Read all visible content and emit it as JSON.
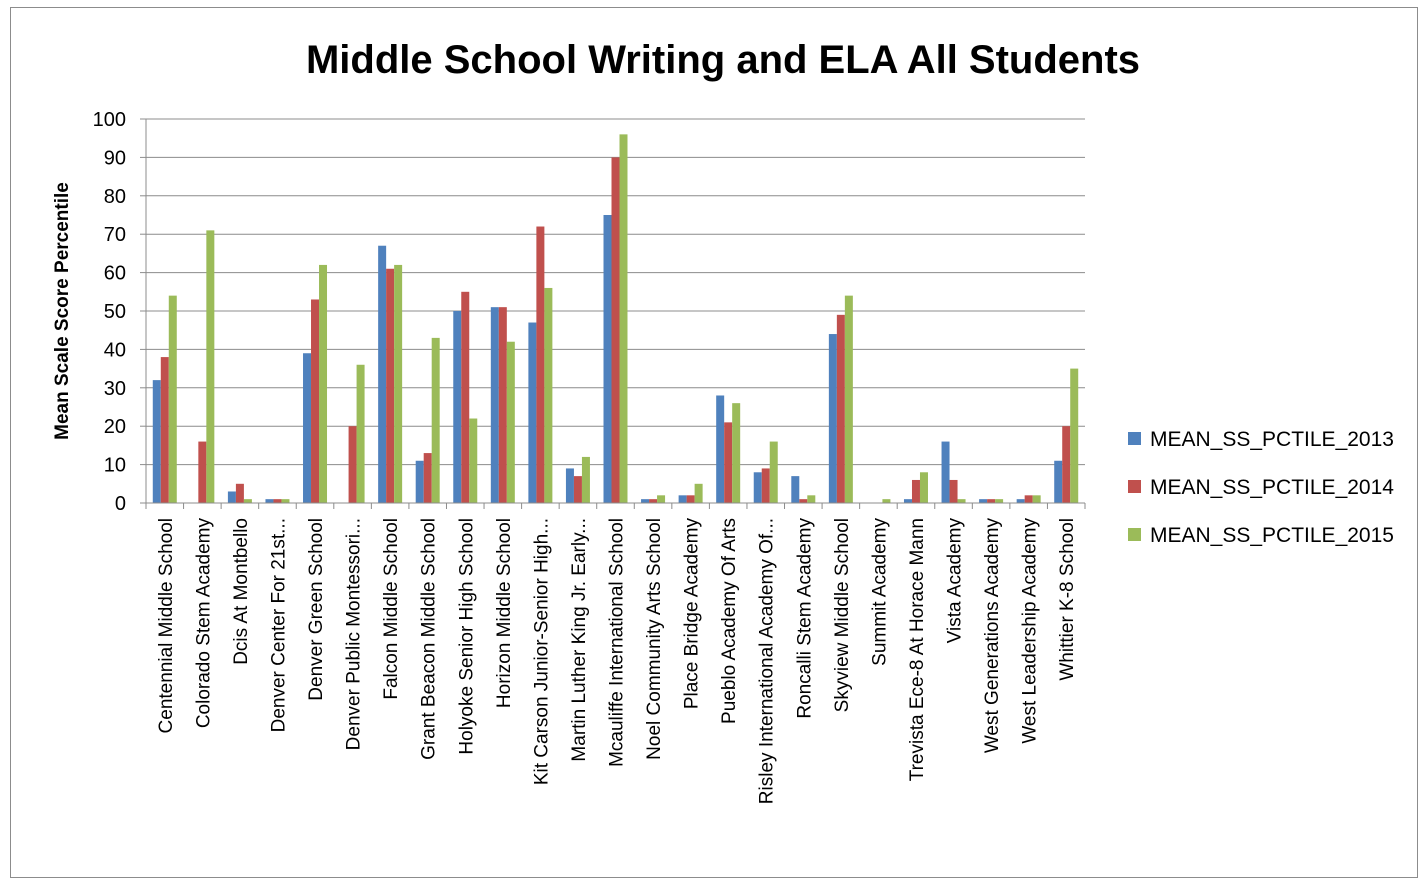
{
  "chart_data": {
    "type": "bar",
    "title": "Middle School Writing and ELA All Students",
    "xlabel": "",
    "ylabel": "Mean Scale Score Percentile",
    "ylim": [
      0,
      100
    ],
    "yticks": [
      "0",
      "10",
      "20",
      "30",
      "40",
      "50",
      "60",
      "70",
      "80",
      "90",
      "100"
    ],
    "grid": true,
    "legend_position": "right",
    "categories": [
      "Centennial Middle School",
      "Colorado Stem Academy",
      "Dcis At Montbello",
      "Denver Center For 21st...",
      "Denver Green School",
      "Denver Public Montessori...",
      "Falcon Middle School",
      "Grant Beacon Middle School",
      "Holyoke Senior High School",
      "Horizon Middle School",
      "Kit Carson Junior-Senior High...",
      "Martin Luther King Jr. Early...",
      "Mcauliffe International School",
      "Noel Community Arts School",
      "Place Bridge Academy",
      "Pueblo Academy Of Arts",
      "Risley International Academy Of...",
      "Roncalli Stem Academy",
      "Skyview Middle School",
      "Summit Academy",
      "Trevista Ece-8 At Horace Mann",
      "Vista Academy",
      "West Generations Academy",
      "West Leadership Academy",
      "Whittier K-8 School"
    ],
    "series": [
      {
        "name": "MEAN_SS_PCTILE_2013",
        "color": "#4f81bd",
        "values": [
          32,
          0,
          3,
          1,
          39,
          0,
          67,
          11,
          50,
          51,
          47,
          9,
          75,
          1,
          2,
          28,
          8,
          7,
          44,
          0,
          1,
          16,
          1,
          1,
          11
        ]
      },
      {
        "name": "MEAN_SS_PCTILE_2014",
        "color": "#c0504d",
        "values": [
          38,
          16,
          5,
          1,
          53,
          20,
          61,
          13,
          55,
          51,
          72,
          7,
          90,
          1,
          2,
          21,
          9,
          1,
          49,
          0,
          6,
          6,
          1,
          2,
          20
        ]
      },
      {
        "name": "MEAN_SS_PCTILE_2015",
        "color": "#9bbb59",
        "values": [
          54,
          71,
          1,
          1,
          62,
          36,
          62,
          43,
          22,
          42,
          56,
          12,
          96,
          2,
          5,
          26,
          16,
          2,
          54,
          1,
          8,
          1,
          1,
          2,
          35
        ]
      }
    ]
  }
}
